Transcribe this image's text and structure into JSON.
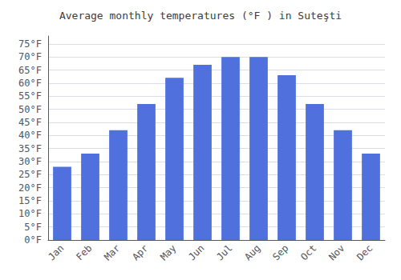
{
  "chart_data": {
    "type": "bar",
    "title": "Average monthly temperatures (°F ) in Suteşti",
    "categories": [
      "Jan",
      "Feb",
      "Mar",
      "Apr",
      "May",
      "Jun",
      "Jul",
      "Aug",
      "Sep",
      "Oct",
      "Nov",
      "Dec"
    ],
    "values": [
      28,
      33,
      42,
      52,
      62,
      67,
      70,
      70,
      63,
      52,
      42,
      33
    ],
    "ylim": [
      0,
      78
    ],
    "yticks": [
      {
        "value": 0,
        "label": "0°F"
      },
      {
        "value": 5,
        "label": "5°F"
      },
      {
        "value": 10,
        "label": "10°F"
      },
      {
        "value": 15,
        "label": "15°F"
      },
      {
        "value": 20,
        "label": "20°F"
      },
      {
        "value": 25,
        "label": "25°F"
      },
      {
        "value": 30,
        "label": "30°F"
      },
      {
        "value": 35,
        "label": "35°F"
      },
      {
        "value": 40,
        "label": "40°F"
      },
      {
        "value": 45,
        "label": "45°F"
      },
      {
        "value": 50,
        "label": "50°F"
      },
      {
        "value": 55,
        "label": "55°F"
      },
      {
        "value": 60,
        "label": "60°F"
      },
      {
        "value": 65,
        "label": "65°F"
      },
      {
        "value": 70,
        "label": "70°F"
      },
      {
        "value": 75,
        "label": "75°F"
      }
    ],
    "grid": true
  }
}
